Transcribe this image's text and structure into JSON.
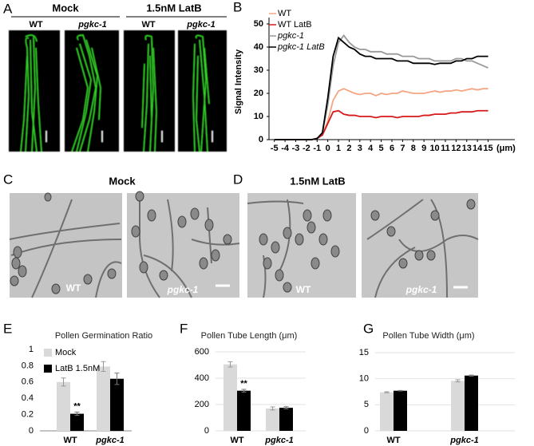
{
  "panel_letters": [
    "A",
    "B",
    "C",
    "D",
    "E",
    "F",
    "G"
  ],
  "panel_a": {
    "groups": [
      "Mock",
      "1.5nM LatB"
    ],
    "columns": [
      "WT",
      "pgkc-1",
      "WT",
      "pgkc-1"
    ]
  },
  "panel_c": {
    "title": "Mock",
    "images": [
      "WT",
      "pgkc-1"
    ]
  },
  "panel_d": {
    "title": "1.5nM LatB",
    "images": [
      "WT",
      "pgkc-1"
    ]
  },
  "chart_data": [
    {
      "type": "line",
      "y_label": "Signal Intensity",
      "x_label": "(μm)",
      "x": [
        -5,
        -4.5,
        -4,
        -3.5,
        -3,
        -2.5,
        -2,
        -1.5,
        -1,
        -0.5,
        0,
        0.5,
        1,
        1.5,
        2,
        2.5,
        3,
        3.5,
        4,
        4.5,
        5,
        5.5,
        6,
        6.5,
        7,
        7.5,
        8,
        8.5,
        9,
        9.5,
        10,
        10.5,
        11,
        11.5,
        12,
        12.5,
        13,
        13.5,
        14,
        14.5,
        15
      ],
      "series": [
        {
          "name": "WT",
          "color": "#f4a582",
          "values": [
            0,
            0,
            0,
            0,
            0,
            0,
            0,
            0,
            0.5,
            2,
            8,
            17,
            21,
            22,
            21,
            20,
            19.5,
            20,
            20,
            19,
            20,
            19.5,
            20,
            20,
            21,
            20.5,
            20,
            20,
            20,
            20.5,
            21,
            20.5,
            21,
            21,
            21.5,
            21,
            21.5,
            22,
            21.5,
            22,
            22
          ]
        },
        {
          "name": "WT LatB",
          "color": "#d7191c",
          "values": [
            0,
            0,
            0,
            0,
            0,
            0,
            0,
            0,
            0.5,
            2,
            7,
            12,
            12.5,
            11,
            10.5,
            10.5,
            10,
            10,
            10,
            9.5,
            10,
            10,
            10,
            9.5,
            10,
            10,
            10,
            10,
            10.5,
            10.5,
            11,
            11,
            11,
            11.5,
            11.5,
            12,
            12,
            12,
            12.5,
            12.5,
            12.5
          ]
        },
        {
          "name": "pgkc-1",
          "color": "#999999",
          "values": [
            0,
            0,
            0,
            0,
            0,
            0,
            0,
            0,
            0.5,
            3,
            15,
            32,
            42,
            45,
            42,
            40,
            39,
            39,
            38,
            38,
            38,
            37,
            37,
            37,
            36,
            36,
            36,
            35,
            35,
            35,
            34,
            34,
            34,
            34,
            35,
            35,
            34,
            34,
            33,
            32,
            31
          ]
        },
        {
          "name": "pgkc-1 LatB",
          "color": "#000000",
          "values": [
            0,
            0,
            0,
            0,
            0,
            0,
            0,
            0,
            0.5,
            3,
            18,
            36,
            44,
            42,
            40,
            39,
            37,
            36,
            36,
            35,
            35,
            35,
            35,
            34,
            34,
            34,
            33,
            33,
            33,
            33,
            32.5,
            33,
            33,
            33,
            34,
            34,
            35,
            35,
            36,
            36,
            36
          ]
        }
      ],
      "xlim": [
        -5.5,
        17.5
      ],
      "xticks": [
        -5,
        -4,
        -3,
        -2,
        -1,
        0,
        1,
        2,
        3,
        4,
        5,
        6,
        7,
        8,
        9,
        10,
        11,
        12,
        13,
        14,
        15
      ],
      "ylim": [
        0,
        50
      ],
      "yticks": [
        0,
        10,
        20,
        30,
        40,
        50
      ],
      "grid": false,
      "legend": "top-left"
    },
    {
      "type": "bar",
      "title": "Pollen Germination Ratio",
      "categories": [
        "WT",
        "pgkc-1"
      ],
      "series": [
        {
          "name": "Mock",
          "color": "#d9d9d9",
          "values": [
            0.6,
            0.79
          ],
          "errors": [
            0.05,
            0.06
          ]
        },
        {
          "name": "LatB 1.5nM",
          "color": "#000000",
          "values": [
            0.21,
            0.64
          ],
          "errors": [
            0.02,
            0.07
          ]
        }
      ],
      "ylim": [
        0,
        1
      ],
      "yticks": [
        0,
        0.2,
        0.4,
        0.6,
        0.8,
        1
      ],
      "grid": false,
      "legend": "top-left",
      "annotation": "**"
    },
    {
      "type": "bar",
      "title": "Pollen Tube Length (μm)",
      "categories": [
        "WT",
        "pgkc-1"
      ],
      "series": [
        {
          "color": "#d9d9d9",
          "values": [
            505,
            170
          ],
          "errors": [
            20,
            12
          ]
        },
        {
          "color": "#000000",
          "values": [
            305,
            175
          ],
          "errors": [
            10,
            8
          ]
        }
      ],
      "ylim": [
        0,
        600
      ],
      "yticks": [
        0,
        200,
        400,
        600
      ],
      "grid": true,
      "annotation": "**"
    },
    {
      "type": "bar",
      "title": "Pollen Tube Width (μm)",
      "categories": [
        "WT",
        "pgkc-1"
      ],
      "series": [
        {
          "color": "#d9d9d9",
          "values": [
            7.4,
            9.6
          ],
          "errors": [
            0.1,
            0.2
          ]
        },
        {
          "color": "#000000",
          "values": [
            7.7,
            10.6
          ],
          "errors": [
            0.05,
            0.1
          ]
        }
      ],
      "ylim": [
        0,
        15
      ],
      "yticks": [
        0,
        5,
        10,
        15
      ],
      "grid": true
    }
  ]
}
